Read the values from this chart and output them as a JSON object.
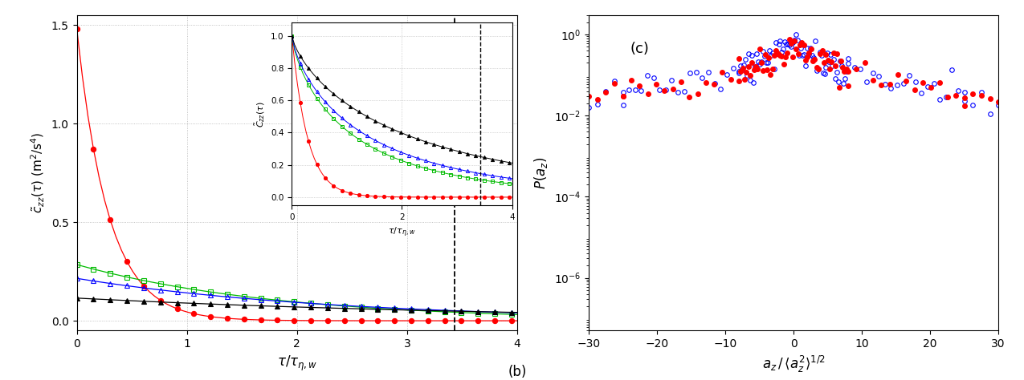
{
  "panel_b": {
    "xlabel": "\\tau/\\tau_{\\eta,w}",
    "ylabel": "\\tilde{c}_{zz}(\\tau)  (m\\u00b2/s\\u2074)",
    "xlim": [
      0,
      4
    ],
    "ylim": [
      -0.05,
      1.55
    ],
    "yticks": [
      0.0,
      0.5,
      1.0,
      1.5
    ],
    "xticks": [
      0,
      1,
      2,
      3,
      4
    ],
    "dashed_x": 3.43,
    "series": [
      {
        "color": "#ff0000",
        "marker": "o",
        "filled": true,
        "A": 1.48,
        "k": 3.5
      },
      {
        "color": "#00bb00",
        "marker": "s",
        "filled": false,
        "A": 0.285,
        "k": 0.55
      },
      {
        "color": "#0000ff",
        "marker": "^",
        "filled": false,
        "A": 0.215,
        "k": 0.42
      },
      {
        "color": "#000000",
        "marker": "^",
        "filled": true,
        "A": 0.115,
        "k": 0.25
      }
    ],
    "n_points": 80
  },
  "inset": {
    "xlabel": "\\tau/\\tau_{\\eta,w}",
    "ylabel": "\\tilde{C}_{zz}(\\tau)",
    "xlim": [
      0,
      4
    ],
    "ylim": [
      -0.05,
      1.08
    ],
    "yticks": [
      0.0,
      0.2,
      0.4,
      0.6,
      0.8,
      1.0
    ],
    "xticks": [
      0,
      2,
      4
    ],
    "dashed_x": 3.43,
    "series": [
      {
        "color": "#ff0000",
        "marker": "o",
        "filled": true,
        "k": 3.5,
        "beta": 1.0
      },
      {
        "color": "#00bb00",
        "marker": "s",
        "filled": false,
        "k": 0.85,
        "beta": 0.75
      },
      {
        "color": "#0000ff",
        "marker": "^",
        "filled": false,
        "k": 0.7,
        "beta": 0.75
      },
      {
        "color": "#000000",
        "marker": "^",
        "filled": true,
        "k": 0.45,
        "beta": 0.75
      }
    ],
    "n_points": 80
  },
  "panel_c": {
    "label": "(c)",
    "xlabel": "a_z / <a_z^2>^{1/2}",
    "ylabel": "P(a_z)",
    "xlim": [
      -30,
      30
    ],
    "ylim": [
      5e-08,
      3.0
    ],
    "xticks": [
      -30,
      -20,
      -10,
      0,
      10,
      20,
      30
    ],
    "red_color": "#ff0000",
    "blue_color": "#0000ff",
    "beta": 0.53,
    "scale": 3.0
  },
  "annotation_b": "(b)"
}
